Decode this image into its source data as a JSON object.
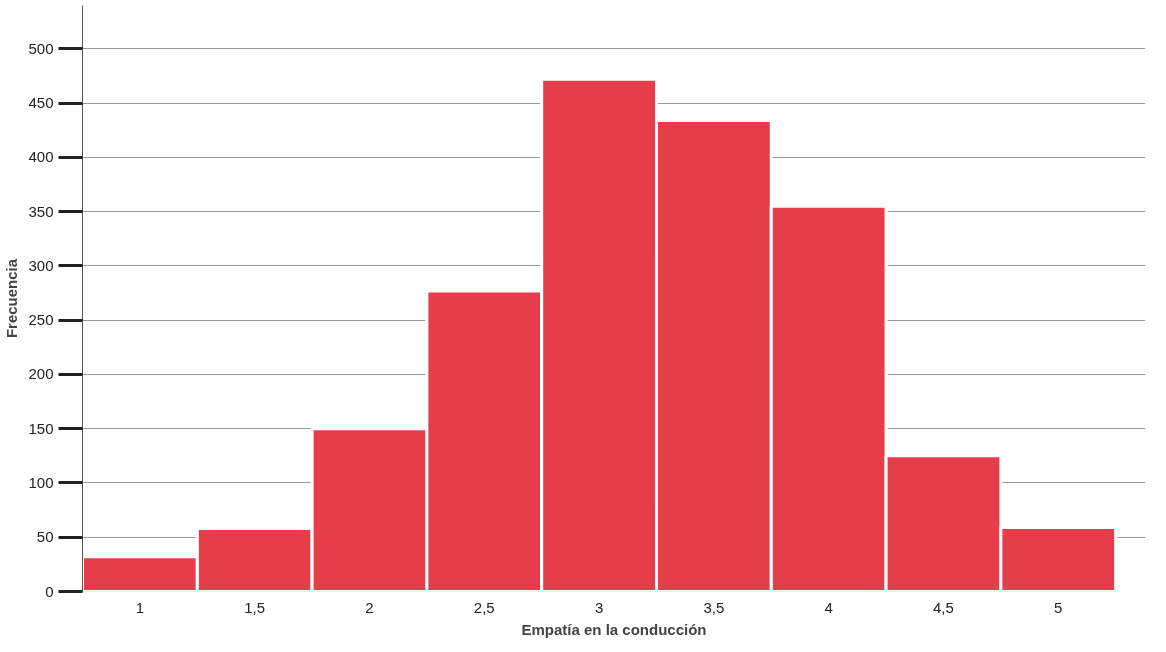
{
  "chart_data": {
    "type": "histogram",
    "xlabel": "Empatía en la conducción",
    "ylabel": "Frecuencia",
    "bins": [
      0.75,
      1.25,
      1.75,
      2.25,
      2.75,
      3.25,
      3.75,
      4.25,
      4.75,
      5.25
    ],
    "values": [
      32,
      58,
      150,
      277,
      472,
      434,
      355,
      125,
      59
    ],
    "color": "#e63d4b",
    "xlim": [
      0.75,
      5.38
    ],
    "ylim": [
      0,
      540
    ],
    "xticks": [
      1,
      {
        "value": 1.5,
        "label": "1,5"
      },
      2,
      {
        "value": 2.5,
        "label": "2,5"
      },
      3,
      {
        "value": 3.5,
        "label": "3,5"
      },
      4,
      {
        "value": 4.5,
        "label": "4,5"
      },
      5
    ],
    "yticks": [
      0,
      50,
      100,
      150,
      200,
      250,
      300,
      350,
      400,
      450,
      500
    ],
    "grid": "y"
  }
}
